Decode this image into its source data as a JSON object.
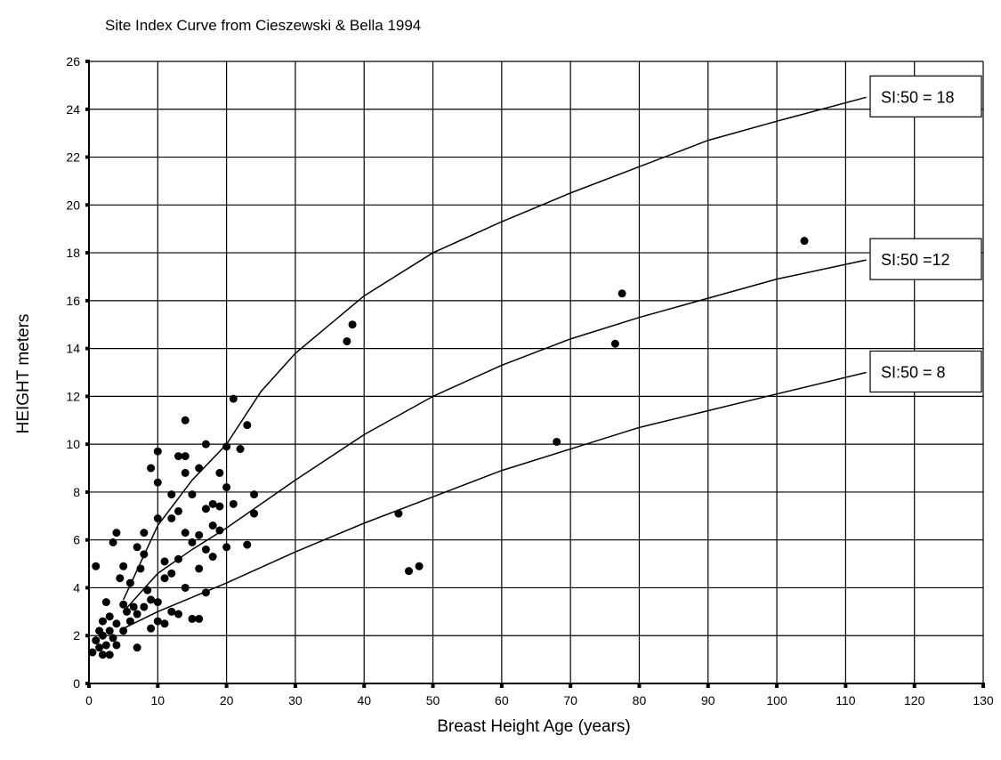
{
  "chart_data": {
    "type": "scatter",
    "title": "Site Index Curve from Cieszewski & Bella 1994",
    "x_label": "Breast Height Age (years)",
    "y_label": "HEIGHT meters",
    "xlim": [
      0,
      130
    ],
    "ylim": [
      0,
      26
    ],
    "xticks": [
      0,
      10,
      20,
      30,
      40,
      50,
      60,
      70,
      80,
      90,
      100,
      110,
      120,
      130
    ],
    "yticks": [
      0,
      2,
      4,
      6,
      8,
      10,
      12,
      14,
      16,
      18,
      20,
      22,
      24,
      26
    ],
    "grid": true,
    "points": {
      "color": "#000000",
      "x": [
        0.5,
        1,
        1,
        1.5,
        1.5,
        2,
        2,
        2,
        2.5,
        2.5,
        3,
        3,
        3,
        3.5,
        3.5,
        4,
        4,
        4,
        4.5,
        5,
        5,
        5,
        5.5,
        6,
        6,
        6.5,
        7,
        7,
        7,
        7.5,
        8,
        8,
        8,
        8.5,
        9,
        9,
        9,
        10,
        10,
        10,
        10,
        10,
        11,
        11,
        11,
        12,
        12,
        12,
        12,
        13,
        13,
        13,
        13,
        14,
        14,
        14,
        14,
        14,
        15,
        15,
        15,
        16,
        16,
        16,
        16,
        17,
        17,
        17,
        17,
        18,
        18,
        18,
        19,
        19,
        19,
        20,
        20,
        20,
        21,
        21,
        22,
        23,
        23,
        24,
        24,
        37.5,
        38.3,
        45,
        46.5,
        48,
        68,
        76.5,
        77.5,
        104
      ],
      "values": [
        1.3,
        4.9,
        1.8,
        2.2,
        1.5,
        2.6,
        1.2,
        2,
        3.4,
        1.6,
        2.2,
        1.2,
        2.8,
        5.9,
        1.9,
        6.3,
        2.5,
        1.6,
        4.4,
        3.3,
        4.9,
        2.2,
        3,
        2.6,
        4.2,
        3.2,
        5.7,
        2.9,
        1.5,
        4.8,
        6.3,
        3.2,
        5.4,
        3.9,
        9,
        2.3,
        3.5,
        9.7,
        8.4,
        6.9,
        3.4,
        2.6,
        5.1,
        4.4,
        2.5,
        7.9,
        6.9,
        4.6,
        3,
        9.5,
        7.2,
        5.2,
        2.9,
        11,
        9.5,
        8.8,
        6.3,
        4,
        7.9,
        5.9,
        2.7,
        9,
        6.2,
        4.8,
        2.7,
        10,
        7.3,
        5.6,
        3.8,
        7.5,
        6.6,
        5.3,
        8.8,
        7.4,
        6.4,
        9.9,
        8.2,
        5.7,
        11.9,
        7.5,
        9.8,
        10.8,
        5.8,
        7.1,
        7.9,
        14.3,
        15,
        7.1,
        4.7,
        4.9,
        10.1,
        14.2,
        16.3,
        18.5
      ]
    },
    "series": [
      {
        "name": "SI:50 = 18",
        "color": "#000000",
        "x": [
          5,
          10,
          15,
          20,
          25,
          30,
          40,
          50,
          60,
          70,
          80,
          90,
          100,
          113
        ],
        "values": [
          3.5,
          6.6,
          8.5,
          10,
          12.2,
          13.8,
          16.2,
          18,
          19.3,
          20.5,
          21.6,
          22.7,
          23.5,
          24.5
        ]
      },
      {
        "name": "SI:50 =12",
        "color": "#000000",
        "x": [
          5,
          10,
          15,
          20,
          30,
          40,
          50,
          60,
          70,
          80,
          90,
          100,
          113
        ],
        "values": [
          3,
          4.6,
          5.6,
          6.5,
          8.5,
          10.4,
          12,
          13.3,
          14.4,
          15.3,
          16.1,
          16.9,
          17.7
        ]
      },
      {
        "name": "SI:50 = 8",
        "color": "#000000",
        "x": [
          5,
          10,
          15,
          20,
          30,
          40,
          50,
          60,
          70,
          80,
          90,
          100,
          113
        ],
        "values": [
          2.3,
          3,
          3.6,
          4.2,
          5.5,
          6.7,
          7.8,
          8.9,
          9.8,
          10.7,
          11.4,
          12.1,
          13
        ]
      }
    ]
  }
}
